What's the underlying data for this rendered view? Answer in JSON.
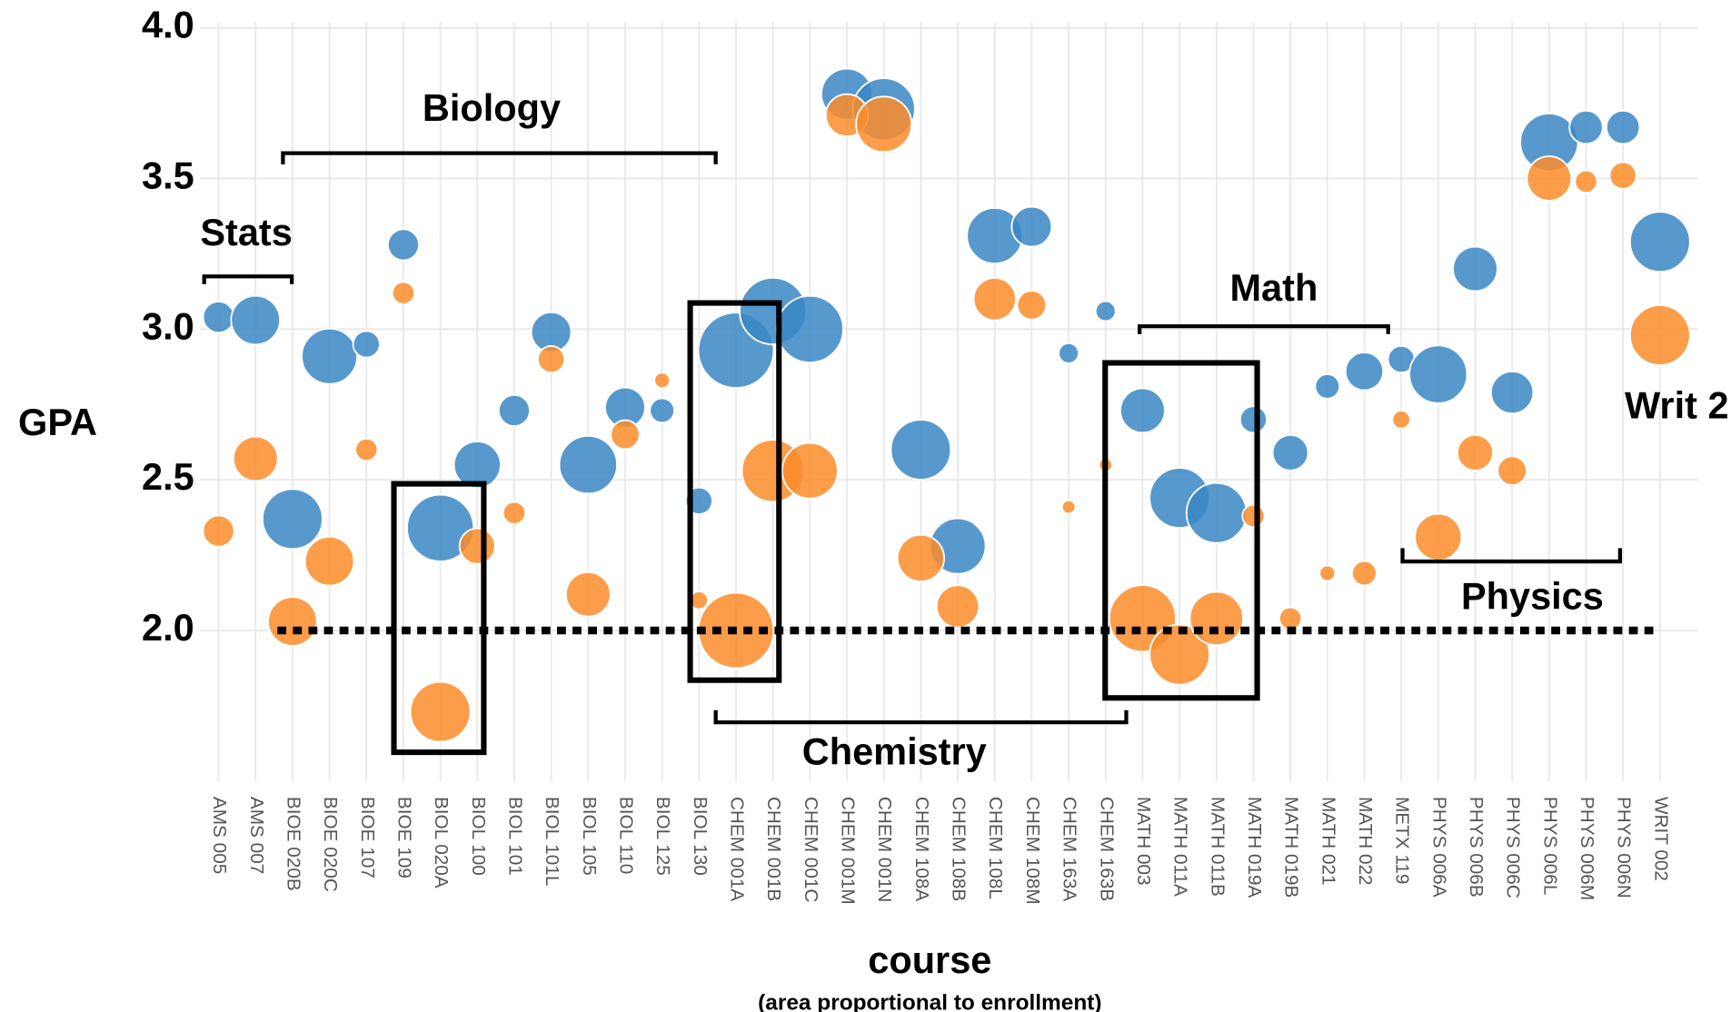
{
  "chart_data": {
    "type": "bubble",
    "title_y": "GPA",
    "xlabel": "course",
    "xlabel_note": "(area proportional to enrollment)",
    "categories": [
      "AMS 005",
      "AMS 007",
      "BIOE 020B",
      "BIOE 020C",
      "BIOE 107",
      "BIOE 109",
      "BIOL 020A",
      "BIOL 100",
      "BIOL 101",
      "BIOL 101L",
      "BIOL 105",
      "BIOL 110",
      "BIOL 125",
      "BIOL 130",
      "CHEM 001A",
      "CHEM 001B",
      "CHEM 001C",
      "CHEM 001M",
      "CHEM 001N",
      "CHEM 108A",
      "CHEM 108B",
      "CHEM 108L",
      "CHEM 108M",
      "CHEM 163A",
      "CHEM 163B",
      "MATH 003",
      "MATH 011A",
      "MATH 011B",
      "MATH 019A",
      "MATH 019B",
      "MATH 021",
      "MATH 022",
      "METX 119",
      "PHYS 006A",
      "PHYS 006B",
      "PHYS 006C",
      "PHYS 006L",
      "PHYS 006M",
      "PHYS 006N",
      "WRIT 002"
    ],
    "series": [
      {
        "color": "#3a87c4",
        "values": [
          3.04,
          3.03,
          2.37,
          2.91,
          2.95,
          3.28,
          2.34,
          2.55,
          2.73,
          2.99,
          2.55,
          2.74,
          2.73,
          2.43,
          2.93,
          3.06,
          3.0,
          3.78,
          3.73,
          2.6,
          2.28,
          3.31,
          3.34,
          2.92,
          3.06,
          2.73,
          2.44,
          2.39,
          2.7,
          2.59,
          2.81,
          2.86,
          2.9,
          2.85,
          3.2,
          2.79,
          3.62,
          3.67,
          3.67,
          3.29
        ],
        "sizes": [
          196,
          484,
          729,
          625,
          144,
          196,
          900,
          441,
          196,
          324,
          676,
          324,
          121,
          144,
          1156,
          900,
          900,
          529,
          784,
          729,
          625,
          625,
          324,
          81,
          81,
          400,
          729,
          729,
          144,
          256,
          121,
          289,
          144,
          676,
          400,
          361,
          676,
          225,
          225,
          729
        ]
      },
      {
        "color": "#fb8c2a",
        "values": [
          2.33,
          2.57,
          2.03,
          2.23,
          2.6,
          3.12,
          1.73,
          2.28,
          2.39,
          2.9,
          2.12,
          2.65,
          2.83,
          2.1,
          2.0,
          2.53,
          2.53,
          3.71,
          3.68,
          2.24,
          2.08,
          3.1,
          3.08,
          2.41,
          2.55,
          2.04,
          1.92,
          2.04,
          2.38,
          2.04,
          2.19,
          2.19,
          2.7,
          2.31,
          2.59,
          2.53,
          3.5,
          3.49,
          3.51,
          2.98
        ],
        "sizes": [
          196,
          400,
          484,
          484,
          100,
          100,
          729,
          256,
          100,
          144,
          400,
          169,
          49,
          64,
          1156,
          784,
          625,
          361,
          625,
          441,
          361,
          361,
          169,
          36,
          36,
          900,
          729,
          576,
          100,
          100,
          49,
          121,
          64,
          441,
          256,
          169,
          400,
          100,
          144,
          729
        ]
      }
    ],
    "ylim": [
      1.5,
      4.0
    ],
    "yticks": [
      {
        "value": 2,
        "label": "2.0"
      },
      {
        "value": 2.5,
        "label": "2.5"
      },
      {
        "value": 3,
        "label": "3.0"
      },
      {
        "value": 3.5,
        "label": "3.5"
      },
      {
        "value": 4,
        "label": "4.0"
      }
    ],
    "reference_line": 2,
    "grid": true,
    "annotations": [
      "Stats",
      "Biology",
      "Chemistry",
      "Math",
      "Physics",
      "Writ 2"
    ]
  }
}
